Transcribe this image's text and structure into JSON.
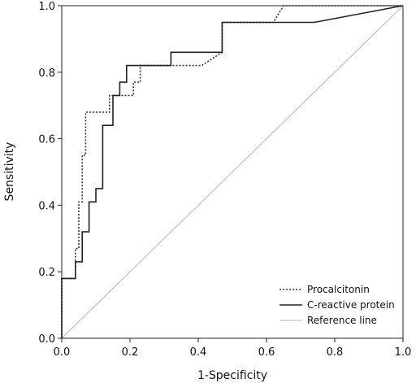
{
  "chart_data": {
    "type": "line",
    "title": "",
    "xlabel": "1-Specificity",
    "ylabel": "Sensitivity",
    "xlim": [
      0,
      1
    ],
    "ylim": [
      0,
      1
    ],
    "x_ticks": [
      "0.0",
      "0.2",
      "0.4",
      "0.6",
      "0.8",
      "1.0"
    ],
    "y_ticks": [
      "0.0",
      "0.2",
      "0.4",
      "0.6",
      "0.8",
      "1.0"
    ],
    "grid": false,
    "legend_position": "bottom-right",
    "series": [
      {
        "name": "Procalcitonin",
        "style": "dotted",
        "color": "#333333",
        "x": [
          0,
          0,
          0.04,
          0.04,
          0.05,
          0.05,
          0.06,
          0.06,
          0.07,
          0.07,
          0.08,
          0.08,
          0.14,
          0.14,
          0.21,
          0.21,
          0.23,
          0.23,
          0.41,
          0.47,
          0.47,
          0.62,
          0.65,
          1.0
        ],
        "y": [
          0,
          0.18,
          0.18,
          0.27,
          0.27,
          0.41,
          0.41,
          0.55,
          0.55,
          0.68,
          0.68,
          0.68,
          0.68,
          0.73,
          0.73,
          0.77,
          0.77,
          0.82,
          0.82,
          0.86,
          0.95,
          0.95,
          1.0,
          1.0
        ]
      },
      {
        "name": "C-reactive protein",
        "style": "solid",
        "color": "#222222",
        "x": [
          0,
          0,
          0.04,
          0.04,
          0.06,
          0.06,
          0.08,
          0.08,
          0.1,
          0.1,
          0.12,
          0.12,
          0.15,
          0.15,
          0.17,
          0.17,
          0.19,
          0.19,
          0.32,
          0.32,
          0.47,
          0.47,
          0.74,
          1.0
        ],
        "y": [
          0,
          0.18,
          0.18,
          0.23,
          0.23,
          0.32,
          0.32,
          0.41,
          0.41,
          0.45,
          0.45,
          0.64,
          0.64,
          0.73,
          0.73,
          0.77,
          0.77,
          0.82,
          0.82,
          0.86,
          0.86,
          0.95,
          0.95,
          1.0
        ]
      },
      {
        "name": "Reference line",
        "style": "solid",
        "color": "#c0c0c0",
        "x": [
          0,
          1
        ],
        "y": [
          0,
          1
        ]
      }
    ]
  }
}
